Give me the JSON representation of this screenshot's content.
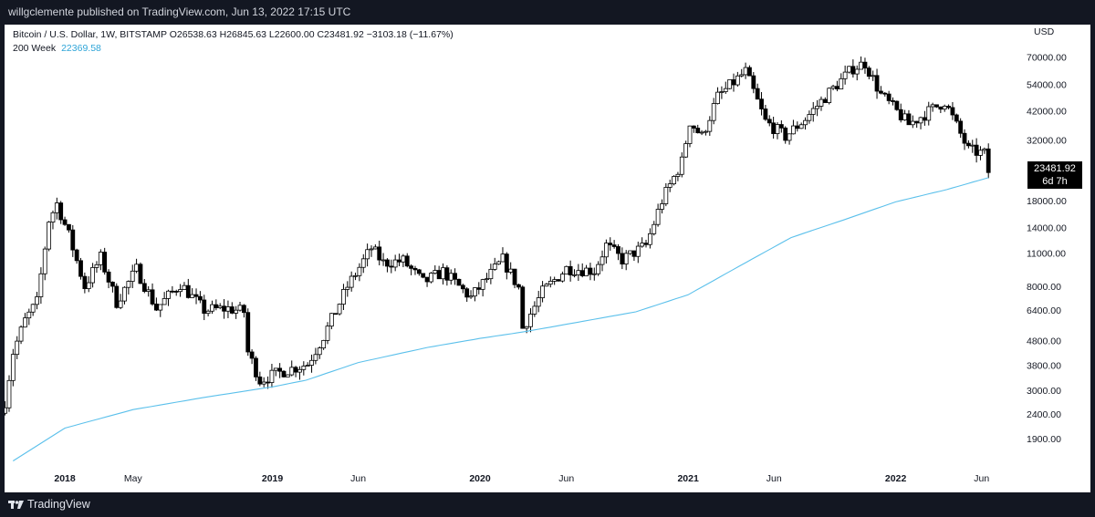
{
  "header": {
    "publish_line": "willgclemente published on TradingView.com, Jun 13, 2022 17:15 UTC"
  },
  "legend": {
    "symbol_line": "Bitcoin / U.S. Dollar, 1W, BITSTAMP  O26538.63  H26845.63  L22600.00  C23481.92  −3103.18 (−11.67%)",
    "ma_label": "200 Week",
    "ma_value": "22369.58"
  },
  "price_tag": {
    "price": "23481.92",
    "countdown": "6d 7h"
  },
  "footer": {
    "brand": "TradingView"
  },
  "colors": {
    "background": "#131722",
    "panel": "#ffffff",
    "candle": "#000000",
    "ma_line": "#5bc0eb"
  },
  "chart_data": {
    "type": "candlestick",
    "title": "Bitcoin / U.S. Dollar, 1W, BITSTAMP",
    "y_scale": "log",
    "y_axis_label": "USD",
    "y_ticks": [
      70000,
      54000,
      42000,
      32000,
      18000,
      14000,
      11000,
      8000,
      6400,
      4800,
      3800,
      3000,
      2400,
      1900
    ],
    "y_tick_labels": [
      "70000.00",
      "54000.00",
      "42000.00",
      "32000.00",
      "18000.00",
      "14000.00",
      "11000.00",
      "8000.00",
      "6400.00",
      "4800.00",
      "3800.00",
      "3000.00",
      "2400.00",
      "1900.00"
    ],
    "ylim": [
      1520,
      95000
    ],
    "x_range": [
      "2017-09-17",
      "2022-07-26"
    ],
    "x_ticks": [
      {
        "date": "2018-01-01",
        "label": "2018",
        "bold": true
      },
      {
        "date": "2018-05-01",
        "label": "May",
        "bold": false
      },
      {
        "date": "2019-01-01",
        "label": "2019",
        "bold": true
      },
      {
        "date": "2019-06-01",
        "label": "Jun",
        "bold": false
      },
      {
        "date": "2020-01-01",
        "label": "2020",
        "bold": true
      },
      {
        "date": "2020-06-01",
        "label": "Jun",
        "bold": false
      },
      {
        "date": "2021-01-01",
        "label": "2021",
        "bold": true
      },
      {
        "date": "2021-06-01",
        "label": "Jun",
        "bold": false
      },
      {
        "date": "2022-01-01",
        "label": "2022",
        "bold": true
      },
      {
        "date": "2022-06-01",
        "label": "Jun",
        "bold": false
      }
    ],
    "candle_path": [
      [
        "2017-09-18",
        2700
      ],
      [
        "2017-10-02",
        4300
      ],
      [
        "2017-10-23",
        5800
      ],
      [
        "2017-11-13",
        6900
      ],
      [
        "2017-12-04",
        15000
      ],
      [
        "2017-12-18",
        17500
      ],
      [
        "2018-01-08",
        13000
      ],
      [
        "2018-02-05",
        8000
      ],
      [
        "2018-03-05",
        10500
      ],
      [
        "2018-04-02",
        6900
      ],
      [
        "2018-05-07",
        9400
      ],
      [
        "2018-06-11",
        6500
      ],
      [
        "2018-07-23",
        8200
      ],
      [
        "2018-09-03",
        6400
      ],
      [
        "2018-10-15",
        6500
      ],
      [
        "2018-11-12",
        6300
      ],
      [
        "2018-11-19",
        4300
      ],
      [
        "2018-12-10",
        3300
      ],
      [
        "2019-01-21",
        3600
      ],
      [
        "2019-03-04",
        3850
      ],
      [
        "2019-04-01",
        5000
      ],
      [
        "2019-05-13",
        8000
      ],
      [
        "2019-06-24",
        11500
      ],
      [
        "2019-07-15",
        10000
      ],
      [
        "2019-08-19",
        10200
      ],
      [
        "2019-09-23",
        8300
      ],
      [
        "2019-10-28",
        9200
      ],
      [
        "2019-12-16",
        7200
      ],
      [
        "2020-02-10",
        10300
      ],
      [
        "2020-03-09",
        7900
      ],
      [
        "2020-03-16",
        5400
      ],
      [
        "2020-04-20",
        7600
      ],
      [
        "2020-06-01",
        9500
      ],
      [
        "2020-07-20",
        9300
      ],
      [
        "2020-08-10",
        11800
      ],
      [
        "2020-09-07",
        10300
      ],
      [
        "2020-10-19",
        11800
      ],
      [
        "2020-11-16",
        18000
      ],
      [
        "2020-12-21",
        26000
      ],
      [
        "2021-01-04",
        38000
      ],
      [
        "2021-01-25",
        33000
      ],
      [
        "2021-02-22",
        48000
      ],
      [
        "2021-04-12",
        61000
      ],
      [
        "2021-05-17",
        38000
      ],
      [
        "2021-06-21",
        33000
      ],
      [
        "2021-07-26",
        39000
      ],
      [
        "2021-09-06",
        50000
      ],
      [
        "2021-10-18",
        63000
      ],
      [
        "2021-11-08",
        66000
      ],
      [
        "2021-12-06",
        49000
      ],
      [
        "2022-01-24",
        37000
      ],
      [
        "2022-03-28",
        46000
      ],
      [
        "2022-05-09",
        29000
      ],
      [
        "2022-06-06",
        28000
      ],
      [
        "2022-06-13",
        23481.92
      ]
    ],
    "ma_200w": [
      [
        "2017-10-02",
        1540
      ],
      [
        "2018-01-01",
        2100
      ],
      [
        "2018-05-01",
        2500
      ],
      [
        "2018-09-01",
        2800
      ],
      [
        "2019-01-01",
        3100
      ],
      [
        "2019-03-01",
        3300
      ],
      [
        "2019-06-01",
        3900
      ],
      [
        "2019-10-01",
        4500
      ],
      [
        "2020-01-01",
        4900
      ],
      [
        "2020-03-15",
        5200
      ],
      [
        "2020-06-01",
        5600
      ],
      [
        "2020-10-01",
        6300
      ],
      [
        "2021-01-01",
        7400
      ],
      [
        "2021-04-01",
        9700
      ],
      [
        "2021-07-01",
        12700
      ],
      [
        "2021-10-01",
        15000
      ],
      [
        "2022-01-01",
        17800
      ],
      [
        "2022-04-01",
        20000
      ],
      [
        "2022-06-13",
        22369.58
      ]
    ],
    "last_close": 23481.92,
    "ma_label": "200 Week",
    "ma_last": 22369.58
  }
}
